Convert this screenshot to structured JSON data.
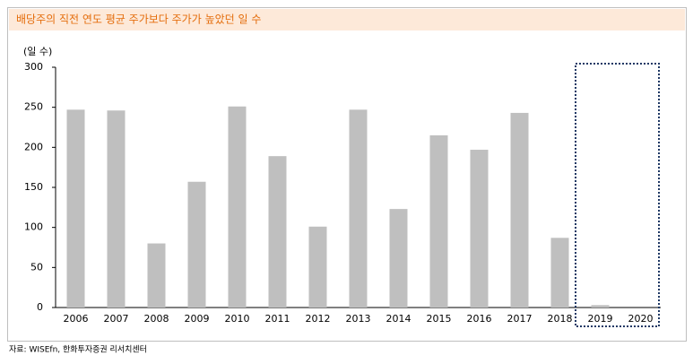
{
  "chart_data": {
    "type": "bar",
    "title": "배당주의 직전 연도 평균 주가보다 주가가 높았던 일 수",
    "y_label": "(일 수)",
    "source": "자료: WISEfn, 한화투자증권 리서치센터",
    "categories": [
      "2006",
      "2007",
      "2008",
      "2009",
      "2010",
      "2011",
      "2012",
      "2013",
      "2014",
      "2015",
      "2016",
      "2017",
      "2018",
      "2019",
      "2020"
    ],
    "values": [
      247,
      246,
      80,
      157,
      251,
      189,
      101,
      247,
      123,
      215,
      197,
      243,
      87,
      3,
      0
    ],
    "color": "#bfbfbf",
    "ylim": [
      0,
      300
    ],
    "yticks": [
      0,
      50,
      100,
      150,
      200,
      250,
      300
    ],
    "grid": false
  }
}
